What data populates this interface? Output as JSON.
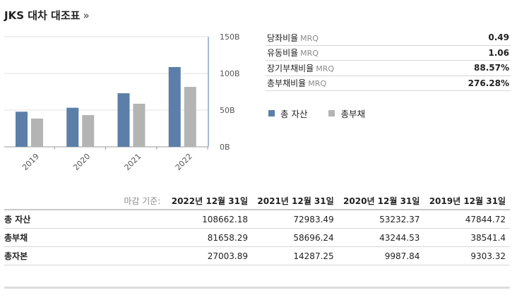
{
  "header": {
    "title": "JKS 대차 대조표",
    "more_glyph": "»"
  },
  "ratios": [
    {
      "label": "당좌비율",
      "suffix": "MRQ",
      "value": "0.49"
    },
    {
      "label": "유동비율",
      "suffix": "MRQ",
      "value": "1.06"
    },
    {
      "label": "장기부채비율",
      "suffix": "MRQ",
      "value": "88.57%"
    },
    {
      "label": "총부채비율",
      "suffix": "MRQ",
      "value": "276.28%"
    }
  ],
  "legend": [
    {
      "name": "총 자산",
      "color": "#5b7fa8"
    },
    {
      "name": "총부채",
      "color": "#b4b4b4"
    }
  ],
  "chart_data": {
    "type": "bar",
    "categories": [
      "2019",
      "2020",
      "2021",
      "2022"
    ],
    "series": [
      {
        "name": "총 자산",
        "color": "#5b7fa8",
        "values": [
          47.84,
          53.23,
          72.98,
          108.66
        ]
      },
      {
        "name": "총부채",
        "color": "#b4b4b4",
        "values": [
          38.54,
          43.24,
          58.7,
          81.66
        ]
      }
    ],
    "y_ticks": [
      "150B",
      "100B",
      "50B",
      "0B"
    ],
    "y_tick_values": [
      150,
      100,
      50,
      0
    ],
    "ylim": [
      0,
      150
    ],
    "grid": true,
    "y_axis_side": "right"
  },
  "table": {
    "header_label": "마감 기준:",
    "periods": [
      "2022년 12월 31일",
      "2021년 12월 31일",
      "2020년 12월 31일",
      "2019년 12월 31일"
    ],
    "rows": [
      {
        "label": "총 자산",
        "values": [
          "108662.18",
          "72983.49",
          "53232.37",
          "47844.72"
        ]
      },
      {
        "label": "총부채",
        "values": [
          "81658.29",
          "58696.24",
          "43244.53",
          "38541.4"
        ]
      },
      {
        "label": "총자본",
        "values": [
          "27003.89",
          "14287.25",
          "9987.84",
          "9303.32"
        ]
      }
    ]
  }
}
